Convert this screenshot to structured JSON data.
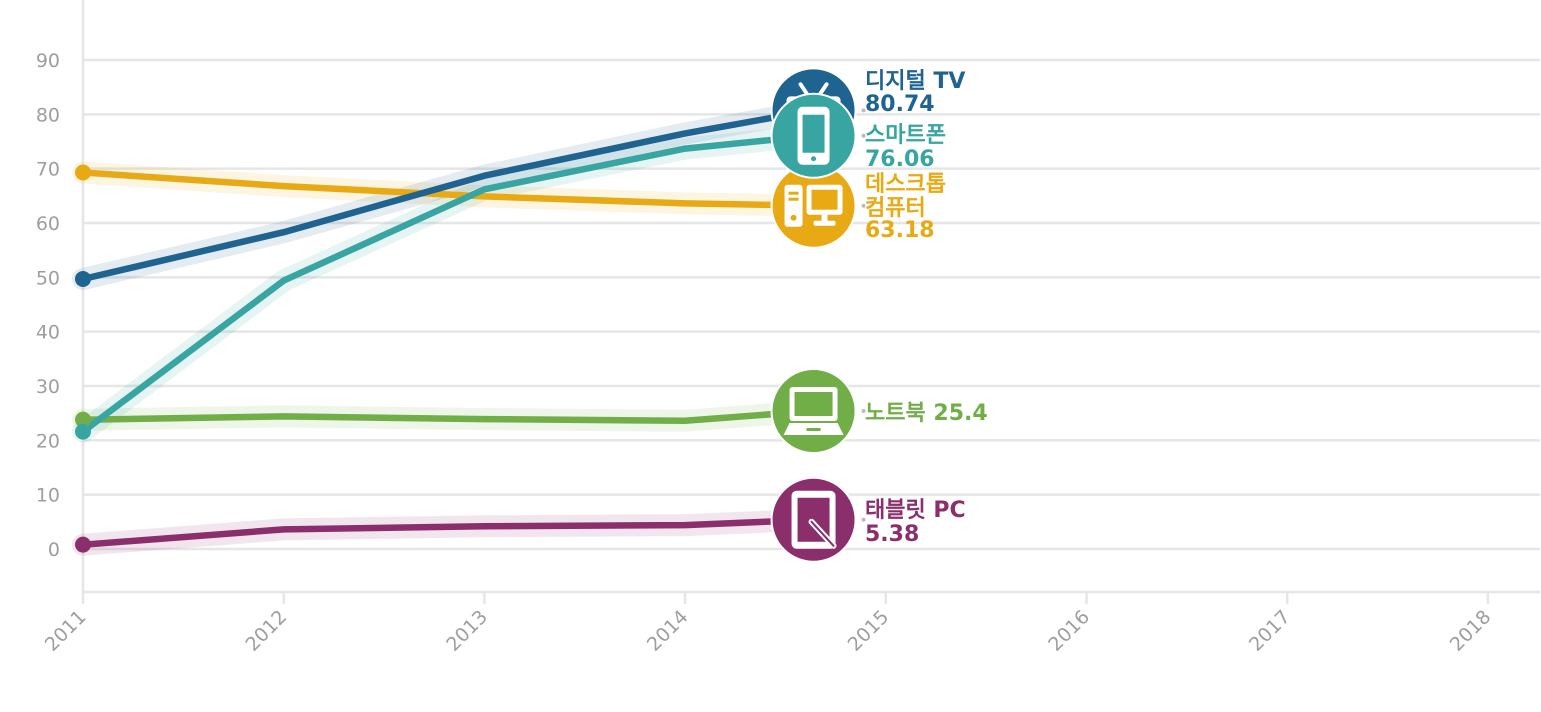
{
  "chart_data": {
    "type": "line",
    "x": [
      2011,
      2012,
      2013,
      2014,
      2014.64
    ],
    "x_ticks": [
      "2011",
      "2012",
      "2013",
      "2014",
      "2015",
      "2016",
      "2017",
      "2018"
    ],
    "y_ticks": [
      "0",
      "10",
      "20",
      "30",
      "40",
      "50",
      "60",
      "70",
      "80",
      "90"
    ],
    "xlim": [
      2011,
      2018
    ],
    "ylim": [
      -8,
      100
    ],
    "grid": true,
    "series": [
      {
        "id": "tv",
        "name_lines": [
          "디지털 TV"
        ],
        "value_label": "80.74",
        "label_layout": "stack",
        "color": "#1f6391",
        "icon": "tv-icon",
        "values": [
          49.7,
          58.3,
          68.7,
          76.5,
          80.74
        ]
      },
      {
        "id": "smartphone",
        "name_lines": [
          "스마트폰"
        ],
        "value_label": "76.06",
        "label_layout": "stack",
        "color": "#38a5a2",
        "icon": "smartphone-icon",
        "values": [
          21.6,
          49.4,
          66.2,
          73.7,
          76.06
        ]
      },
      {
        "id": "desktop",
        "name_lines": [
          "데스크톱",
          "컴퓨터"
        ],
        "value_label": "63.18",
        "label_layout": "stack",
        "color": "#e8aa14",
        "icon": "desktop-icon",
        "values": [
          69.3,
          66.8,
          64.9,
          63.6,
          63.18
        ]
      },
      {
        "id": "laptop",
        "name_lines": [
          "노트북"
        ],
        "value_label": "25.4",
        "label_layout": "inline",
        "color": "#71ae47",
        "icon": "laptop-icon",
        "values": [
          23.8,
          24.4,
          23.9,
          23.6,
          25.4
        ]
      },
      {
        "id": "tablet",
        "name_lines": [
          "태블릿 PC"
        ],
        "value_label": "5.38",
        "label_layout": "stack",
        "color": "#8b2f6c",
        "icon": "tablet-icon",
        "values": [
          0.8,
          3.6,
          4.2,
          4.4,
          5.38
        ]
      }
    ]
  }
}
